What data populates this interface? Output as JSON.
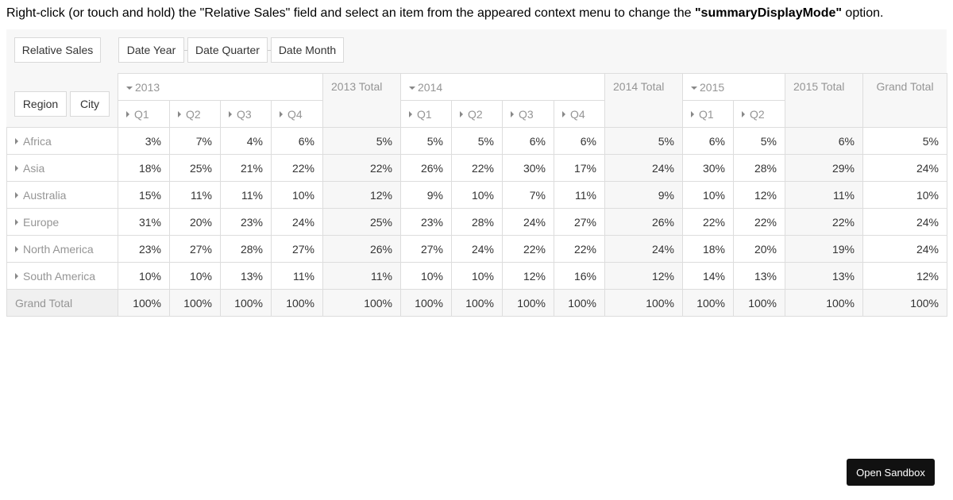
{
  "instruction": {
    "prefix": "Right-click (or touch and hold) the \"Relative Sales\" field and select an item from the appeared context menu to change the ",
    "bold": "\"summaryDisplayMode\"",
    "suffix": " option."
  },
  "fields": {
    "data": "Relative Sales",
    "columns": [
      "Date Year",
      "Date Quarter",
      "Date Month"
    ],
    "rows": [
      "Region",
      "City"
    ]
  },
  "years": [
    {
      "label": "2013",
      "quarters": [
        "Q1",
        "Q2",
        "Q3",
        "Q4"
      ],
      "total": "2013 Total"
    },
    {
      "label": "2014",
      "quarters": [
        "Q1",
        "Q2",
        "Q3",
        "Q4"
      ],
      "total": "2014 Total"
    },
    {
      "label": "2015",
      "quarters": [
        "Q1",
        "Q2"
      ],
      "total": "2015 Total"
    }
  ],
  "grand_total_label": "Grand Total",
  "rows": [
    {
      "region": "Africa",
      "values": [
        "3%",
        "7%",
        "4%",
        "6%",
        "5%",
        "5%",
        "5%",
        "6%",
        "6%",
        "5%",
        "6%",
        "5%",
        "6%",
        "5%"
      ]
    },
    {
      "region": "Asia",
      "values": [
        "18%",
        "25%",
        "21%",
        "22%",
        "22%",
        "26%",
        "22%",
        "30%",
        "17%",
        "24%",
        "30%",
        "28%",
        "29%",
        "24%"
      ]
    },
    {
      "region": "Australia",
      "values": [
        "15%",
        "11%",
        "11%",
        "10%",
        "12%",
        "9%",
        "10%",
        "7%",
        "11%",
        "9%",
        "10%",
        "12%",
        "11%",
        "10%"
      ]
    },
    {
      "region": "Europe",
      "values": [
        "31%",
        "20%",
        "23%",
        "24%",
        "25%",
        "23%",
        "28%",
        "24%",
        "27%",
        "26%",
        "22%",
        "22%",
        "22%",
        "24%"
      ]
    },
    {
      "region": "North America",
      "values": [
        "23%",
        "27%",
        "28%",
        "27%",
        "26%",
        "27%",
        "24%",
        "22%",
        "22%",
        "24%",
        "18%",
        "20%",
        "19%",
        "24%"
      ]
    },
    {
      "region": "South America",
      "values": [
        "10%",
        "10%",
        "13%",
        "11%",
        "11%",
        "10%",
        "10%",
        "12%",
        "16%",
        "12%",
        "14%",
        "13%",
        "13%",
        "12%"
      ]
    }
  ],
  "grand_total_row": {
    "label": "Grand Total",
    "values": [
      "100%",
      "100%",
      "100%",
      "100%",
      "100%",
      "100%",
      "100%",
      "100%",
      "100%",
      "100%",
      "100%",
      "100%",
      "100%",
      "100%"
    ]
  },
  "sandbox_button": "Open Sandbox"
}
